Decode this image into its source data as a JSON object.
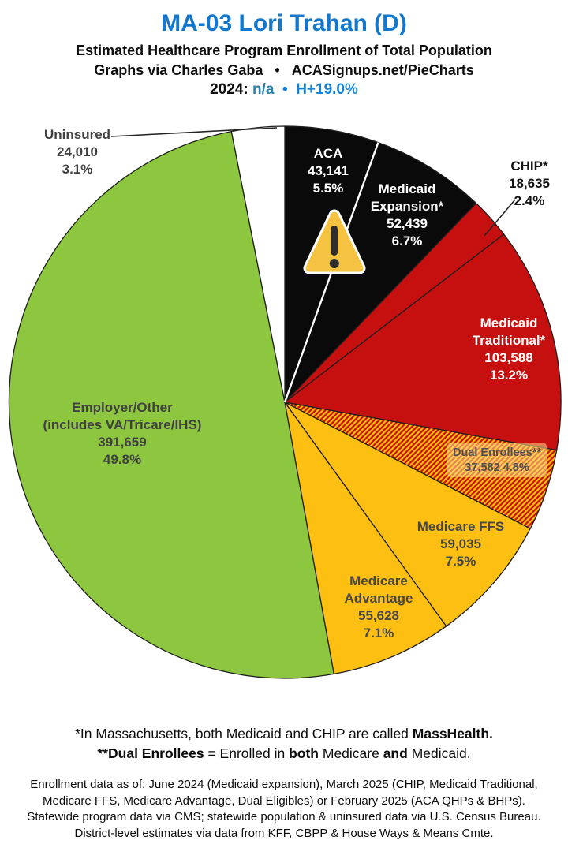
{
  "header": {
    "title": "MA-03 Lori Trahan (D)",
    "subtitle": "Estimated Healthcare Program Enrollment of Total Population",
    "credit": "Graphs via Charles Gaba",
    "credit_separator": "•",
    "site": "ACASignups.net/PieCharts",
    "year_label": "2024:",
    "year_value": "n/a",
    "separator": "•",
    "partisan_lean": "H+19.0%"
  },
  "colors": {
    "title_blue": "#1377cd",
    "year_value_blue": "#2b7fa8",
    "lean_blue": "#1681d4",
    "pie_outline": "#1f1f1f",
    "divider_white": "#ffffff",
    "leader_line": "#262626"
  },
  "warning_icon": {
    "fill": "#f5c242",
    "mark": "#2e2e2e",
    "outline": "#ffffff"
  },
  "chart_data": {
    "type": "pie",
    "title": "MA-03 Lori Trahan (D) — Estimated Healthcare Program Enrollment of Total Population",
    "direction": "clockwise",
    "start_angle_deg": 0,
    "legend_position": "labels-on-slices",
    "slices": [
      {
        "id": "aca",
        "name": "ACA",
        "value": 43141,
        "value_label": "43,141",
        "pct": 5.5,
        "pct_label": "5.5%",
        "color": "#0a0a0a",
        "label_lines": [
          "ACA",
          "43,141",
          "5.5%"
        ]
      },
      {
        "id": "medicaid-expansion",
        "name": "Medicaid Expansion*",
        "value": 52439,
        "value_label": "52,439",
        "pct": 6.7,
        "pct_label": "6.7%",
        "color": "#0a0a0a",
        "white_divider_before": true,
        "label_lines": [
          "Medicaid",
          "Expansion*",
          "52,439",
          "6.7%"
        ]
      },
      {
        "id": "chip",
        "name": "CHIP*",
        "value": 18635,
        "value_label": "18,635",
        "pct": 2.4,
        "pct_label": "2.4%",
        "color": "#c60f0f",
        "label_lines": [
          "CHIP*",
          "18,635",
          "2.4%"
        ]
      },
      {
        "id": "medicaid-traditional",
        "name": "Medicaid Traditional*",
        "value": 103588,
        "value_label": "103,588",
        "pct": 13.2,
        "pct_label": "13.2%",
        "color": "#c60f0f",
        "label_lines": [
          "Medicaid",
          "Traditional*",
          "103,588",
          "13.2%"
        ]
      },
      {
        "id": "dual-enrollees",
        "name": "Dual Enrollees**",
        "value": 37582,
        "value_label": "37,582",
        "pct": 4.8,
        "pct_label": "4.8%",
        "hatch": true,
        "label_lines": [
          "Dual Enrollees**",
          "37,582 4.8%"
        ]
      },
      {
        "id": "medicare-ffs",
        "name": "Medicare FFS",
        "value": 59035,
        "value_label": "59,035",
        "pct": 7.5,
        "pct_label": "7.5%",
        "color": "#fcbf12",
        "label_lines": [
          "Medicare FFS",
          "59,035",
          "7.5%"
        ]
      },
      {
        "id": "medicare-advantage",
        "name": "Medicare Advantage",
        "value": 55628,
        "value_label": "55,628",
        "pct": 7.1,
        "pct_label": "7.1%",
        "color": "#fcbf12",
        "label_lines": [
          "Medicare",
          "Advantage",
          "55,628",
          "7.1%"
        ]
      },
      {
        "id": "employer-other",
        "name": "Employer/Other (includes VA/Tricare/IHS)",
        "value": 391659,
        "value_label": "391,659",
        "pct": 49.8,
        "pct_label": "49.8%",
        "color": "#8dc63f",
        "label_lines": [
          "Employer/Other",
          "(includes VA/Tricare/IHS)",
          "391,659",
          "49.8%"
        ]
      },
      {
        "id": "uninsured",
        "name": "Uninsured",
        "value": 24010,
        "value_label": "24,010",
        "pct": 3.1,
        "pct_label": "3.1%",
        "color": "#ffffff",
        "label_lines": [
          "Uninsured",
          "24,010",
          "3.1%"
        ]
      }
    ],
    "hatch_colors": {
      "base": "#c60f0f",
      "stripe": "#ffc107"
    }
  },
  "footnotes": {
    "mass_line": [
      {
        "t": "*In Massachusetts, both Medicaid and CHIP are called "
      },
      {
        "t": "MassHealth."
      }
    ],
    "dual_line": [
      {
        "t": "**Dual Enrollees"
      },
      {
        "t": " = Enrolled in "
      },
      {
        "t": "both"
      },
      {
        "t": " Medicare "
      },
      {
        "t": "and"
      },
      {
        "t": " Medicaid."
      }
    ],
    "data_lines": [
      "Enrollment data as of: June 2024 (Medicaid expansion), March 2025 (CHIP, Medicaid Traditional,",
      "Medicare FFS, Medicare Advantage, Dual Eligibles) or February 2025 (ACA QHPs & BHPs).",
      "Statewide program data via CMS; statewide population & uninsured data via U.S. Census Bureau.",
      "District-level estimates via data from KFF, CBPP & House Ways & Means Cmte."
    ]
  }
}
